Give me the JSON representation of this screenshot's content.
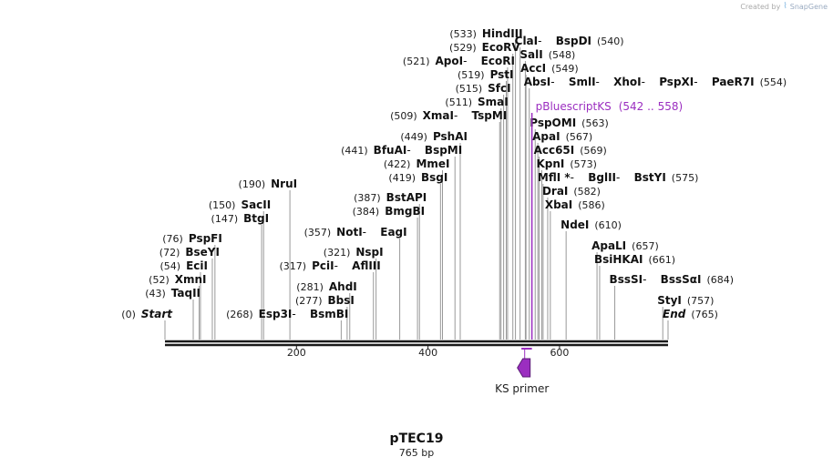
{
  "credit": {
    "created_by": "Created by",
    "brand": "SnapGene"
  },
  "plasmid": {
    "name": "pTEC19",
    "length_label": "765 bp",
    "length": 765
  },
  "axis": {
    "ticks": [
      200,
      400,
      600
    ]
  },
  "start_label": "Start",
  "end_label": "End",
  "sites": [
    {
      "pos": 0,
      "row": 349,
      "names": [
        "Start"
      ],
      "pos_text": "(0)",
      "italic": true,
      "label_side": "left"
    },
    {
      "pos": 43,
      "row": 326,
      "names": [
        "TaqII"
      ],
      "pos_text": "(43)",
      "label_side": "left"
    },
    {
      "pos": 52,
      "row": 311,
      "names": [
        "XmnI"
      ],
      "pos_text": "(52)",
      "label_side": "left"
    },
    {
      "pos": 54,
      "row": 296,
      "names": [
        "EciI"
      ],
      "pos_text": "(54)",
      "label_side": "left"
    },
    {
      "pos": 72,
      "row": 281,
      "names": [
        "BseYI"
      ],
      "pos_text": "(72)",
      "label_side": "left"
    },
    {
      "pos": 76,
      "row": 266,
      "names": [
        "PspFI"
      ],
      "pos_text": "(76)",
      "label_side": "left"
    },
    {
      "pos": 147,
      "row": 244,
      "names": [
        "BtgI"
      ],
      "pos_text": "(147)",
      "label_side": "left"
    },
    {
      "pos": 150,
      "row": 229,
      "names": [
        "SacII"
      ],
      "pos_text": "(150)",
      "label_side": "left"
    },
    {
      "pos": 190,
      "row": 206,
      "names": [
        "NruI"
      ],
      "pos_text": "(190)",
      "label_side": "left"
    },
    {
      "pos": 268,
      "row": 349,
      "names": [
        "Esp3I",
        "BsmBI"
      ],
      "pos_text": "(268)",
      "label_side": "left"
    },
    {
      "pos": 277,
      "row": 334,
      "names": [
        "BbsI"
      ],
      "pos_text": "(277)",
      "label_side": "left"
    },
    {
      "pos": 281,
      "row": 319,
      "names": [
        "AhdI"
      ],
      "pos_text": "(281)",
      "label_side": "left"
    },
    {
      "pos": 317,
      "row": 296,
      "names": [
        "PciI",
        "AflIII"
      ],
      "pos_text": "(317)",
      "label_side": "left"
    },
    {
      "pos": 321,
      "row": 281,
      "names": [
        "NspI"
      ],
      "pos_text": "(321)",
      "label_side": "left"
    },
    {
      "pos": 357,
      "row": 259,
      "names": [
        "NotI",
        "EagI"
      ],
      "pos_text": "(357)",
      "label_side": "left"
    },
    {
      "pos": 384,
      "row": 236,
      "names": [
        "BmgBI"
      ],
      "pos_text": "(384)",
      "label_side": "left"
    },
    {
      "pos": 387,
      "row": 221,
      "names": [
        "BstAPI"
      ],
      "pos_text": "(387)",
      "label_side": "left"
    },
    {
      "pos": 419,
      "row": 199,
      "names": [
        "BsgI"
      ],
      "pos_text": "(419)",
      "label_side": "left"
    },
    {
      "pos": 422,
      "row": 184,
      "names": [
        "MmeI"
      ],
      "pos_text": "(422)",
      "label_side": "left"
    },
    {
      "pos": 441,
      "row": 169,
      "names": [
        "BfuAI",
        "BspMI"
      ],
      "pos_text": "(441)",
      "label_side": "left"
    },
    {
      "pos": 449,
      "row": 154,
      "names": [
        "PshAI"
      ],
      "pos_text": "(449)",
      "label_side": "left"
    },
    {
      "pos": 509,
      "row": 131,
      "names": [
        "XmaI",
        "TspMI"
      ],
      "pos_text": "(509)",
      "label_side": "left"
    },
    {
      "pos": 511,
      "row": 116,
      "names": [
        "SmaI"
      ],
      "pos_text": "(511)",
      "label_side": "left"
    },
    {
      "pos": 515,
      "row": 101,
      "names": [
        "SfcI"
      ],
      "pos_text": "(515)",
      "label_side": "left"
    },
    {
      "pos": 519,
      "row": 86,
      "names": [
        "PstI"
      ],
      "pos_text": "(519)",
      "label_side": "left"
    },
    {
      "pos": 521,
      "row": 71,
      "names": [
        "ApoI",
        "EcoRI"
      ],
      "pos_text": "(521)",
      "label_side": "left"
    },
    {
      "pos": 529,
      "row": 56,
      "names": [
        "EcoRV"
      ],
      "pos_text": "(529)",
      "label_side": "left"
    },
    {
      "pos": 533,
      "row": 41,
      "names": [
        "HindIII"
      ],
      "pos_text": "(533)",
      "label_side": "left"
    },
    {
      "pos": 540,
      "row": 49,
      "names": [
        "ClaI",
        "BspDI"
      ],
      "pos_text": "(540)",
      "label_side": "right"
    },
    {
      "pos": 548,
      "row": 64,
      "names": [
        "SalI"
      ],
      "pos_text": "(548)",
      "label_side": "right"
    },
    {
      "pos": 549,
      "row": 79,
      "names": [
        "AccI"
      ],
      "pos_text": "(549)",
      "label_side": "right"
    },
    {
      "pos": 554,
      "row": 94,
      "names": [
        "AbsI",
        "SmlI",
        "XhoI",
        "PspXI",
        "PaeR7I"
      ],
      "pos_text": "(554)",
      "label_side": "right"
    },
    {
      "pos": 563,
      "row": 139,
      "names": [
        "PspOMI"
      ],
      "pos_text": "(563)",
      "label_side": "right"
    },
    {
      "pos": 567,
      "row": 154,
      "names": [
        "ApaI"
      ],
      "pos_text": "(567)",
      "label_side": "right"
    },
    {
      "pos": 569,
      "row": 169,
      "names": [
        "Acc65I"
      ],
      "pos_text": "(569)",
      "label_side": "right"
    },
    {
      "pos": 573,
      "row": 184,
      "names": [
        "KpnI"
      ],
      "pos_text": "(573)",
      "label_side": "right"
    },
    {
      "pos": 575,
      "row": 199,
      "names": [
        "MflI *",
        "BglII",
        "BstYI"
      ],
      "pos_text": "(575)",
      "label_side": "right"
    },
    {
      "pos": 582,
      "row": 214,
      "names": [
        "DraI"
      ],
      "pos_text": "(582)",
      "label_side": "right"
    },
    {
      "pos": 586,
      "row": 229,
      "names": [
        "XbaI"
      ],
      "pos_text": "(586)",
      "label_side": "right"
    },
    {
      "pos": 610,
      "row": 251,
      "names": [
        "NdeI"
      ],
      "pos_text": "(610)",
      "label_side": "right"
    },
    {
      "pos": 657,
      "row": 274,
      "names": [
        "ApaLI"
      ],
      "pos_text": "(657)",
      "label_side": "right"
    },
    {
      "pos": 661,
      "row": 289,
      "names": [
        "BsiHKAI"
      ],
      "pos_text": "(661)",
      "label_side": "right"
    },
    {
      "pos": 684,
      "row": 311,
      "names": [
        "BssSI",
        "BssSαI"
      ],
      "pos_text": "(684)",
      "label_side": "right"
    },
    {
      "pos": 757,
      "row": 334,
      "names": [
        "StyI"
      ],
      "pos_text": "(757)",
      "label_side": "right"
    },
    {
      "pos": 765,
      "row": 349,
      "names": [
        "End"
      ],
      "pos_text": "(765)",
      "italic": true,
      "label_side": "right"
    }
  ],
  "feature": {
    "name": "pBluescriptKS",
    "range_text": "(542 .. 558)",
    "start": 542,
    "end": 558,
    "color": "#9b2ec0"
  },
  "primer": {
    "name": "KS primer",
    "pos": 547,
    "color": "#9b2ec0"
  }
}
